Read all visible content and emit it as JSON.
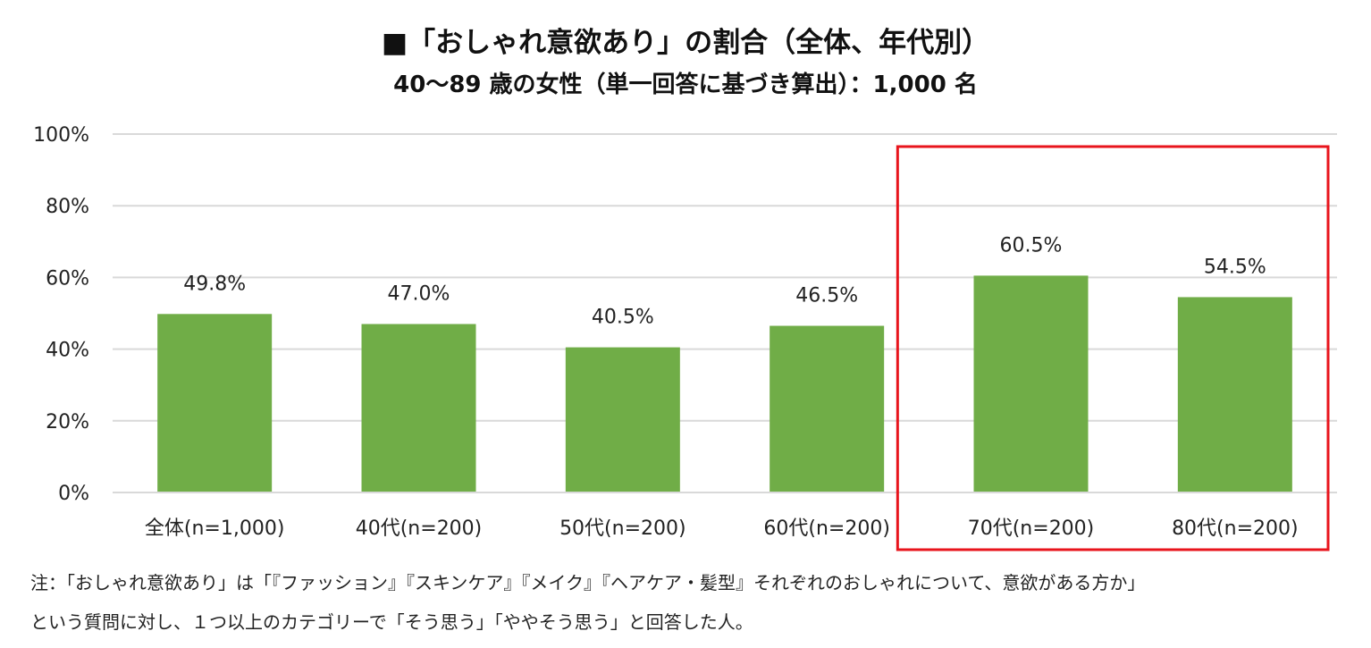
{
  "chart_data": {
    "type": "bar",
    "title": "■「おしゃれ意欲あり」の割合（全体、年代別）",
    "subtitle": "40～89 歳の女性（単一回答に基づき算出）：1,000 名",
    "categories": [
      "全体(n=1,000)",
      "40代(n=200)",
      "50代(n=200)",
      "60代(n=200)",
      "70代(n=200)",
      "80代(n=200)"
    ],
    "values": [
      49.8,
      47.0,
      40.5,
      46.5,
      60.5,
      54.5
    ],
    "value_labels": [
      "49.8%",
      "47.0%",
      "40.5%",
      "46.5%",
      "60.5%",
      "54.5%"
    ],
    "ylim": [
      0,
      100
    ],
    "yticks": [
      0,
      20,
      40,
      60,
      80,
      100
    ],
    "ytick_labels": [
      "0%",
      "20%",
      "40%",
      "60%",
      "80%",
      "100%"
    ],
    "xlabel": "",
    "ylabel": "",
    "grid": true,
    "legend": "none",
    "highlight": {
      "categories": [
        "70代(n=200)",
        "80代(n=200)"
      ],
      "color": "#E8141C"
    },
    "bar_color": "#70AD47",
    "grid_color": "#D9D9D9"
  },
  "notes": {
    "line1": "注：「おしゃれ意欲あり」は「『ファッション』『スキンケア』『メイク』『ヘアケア・髪型』それぞれのおしゃれについて、意欲がある方か」",
    "line2": "という質問に対し、１つ以上のカテゴリーで「そう思う」「ややそう思う」と回答した人。"
  }
}
